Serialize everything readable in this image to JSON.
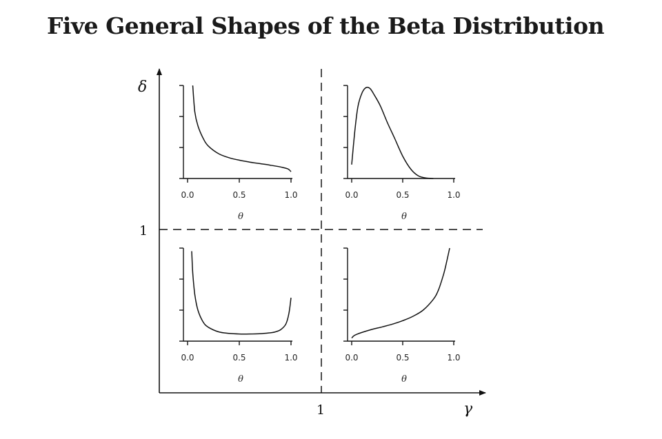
{
  "title": "Five General Shapes of the Beta Distribution",
  "chart_data": {
    "type": "line",
    "title": "Five General Shapes of the Beta Distribution",
    "outer_axes": {
      "x_label": "γ",
      "y_label": "δ",
      "x_divider_label": "1",
      "y_divider_label": "1"
    },
    "panels": [
      {
        "position": "top-left",
        "xlabel": "θ",
        "xticks": [
          "0.0",
          "0.5",
          "1.0"
        ],
        "series": [
          {
            "x": [
              0.05,
              0.07,
              0.1,
              0.15,
              0.2,
              0.3,
              0.4,
              0.5,
              0.6,
              0.7,
              0.8,
              0.9,
              0.97,
              1.0
            ],
            "y": [
              3.0,
              2.15,
              1.7,
              1.3,
              1.05,
              0.8,
              0.67,
              0.59,
              0.53,
              0.48,
              0.43,
              0.37,
              0.31,
              0.22
            ]
          }
        ]
      },
      {
        "position": "top-right",
        "xlabel": "θ",
        "xticks": [
          "0.0",
          "0.5",
          "1.0"
        ],
        "series": [
          {
            "x": [
              0.0,
              0.03,
              0.06,
              0.1,
              0.14,
              0.18,
              0.22,
              0.28,
              0.35,
              0.42,
              0.5,
              0.58,
              0.65,
              0.72,
              0.8
            ],
            "y": [
              0.45,
              1.5,
              2.3,
              2.75,
              2.93,
              2.9,
              2.7,
              2.35,
              1.8,
              1.3,
              0.72,
              0.3,
              0.09,
              0.02,
              0.0
            ]
          }
        ]
      },
      {
        "position": "bottom-left",
        "xlabel": "θ",
        "xticks": [
          "0.0",
          "0.5",
          "1.0"
        ],
        "series": [
          {
            "x": [
              0.04,
              0.05,
              0.07,
              0.1,
              0.15,
              0.2,
              0.3,
              0.4,
              0.5,
              0.6,
              0.7,
              0.8,
              0.85,
              0.9,
              0.95,
              0.98,
              1.0
            ],
            "y": [
              2.9,
              2.2,
              1.5,
              1.0,
              0.62,
              0.45,
              0.3,
              0.25,
              0.23,
              0.23,
              0.24,
              0.27,
              0.3,
              0.37,
              0.55,
              0.9,
              1.4
            ]
          }
        ]
      },
      {
        "position": "bottom-right",
        "xlabel": "θ",
        "xticks": [
          "0.0",
          "0.5",
          "1.0"
        ],
        "series": [
          {
            "x": [
              0.0,
              0.02,
              0.05,
              0.1,
              0.2,
              0.3,
              0.4,
              0.5,
              0.6,
              0.7,
              0.8,
              0.85,
              0.9,
              0.93,
              0.96
            ],
            "y": [
              0.1,
              0.17,
              0.22,
              0.28,
              0.38,
              0.46,
              0.55,
              0.66,
              0.8,
              1.0,
              1.35,
              1.65,
              2.15,
              2.55,
              3.0
            ]
          }
        ]
      }
    ]
  }
}
